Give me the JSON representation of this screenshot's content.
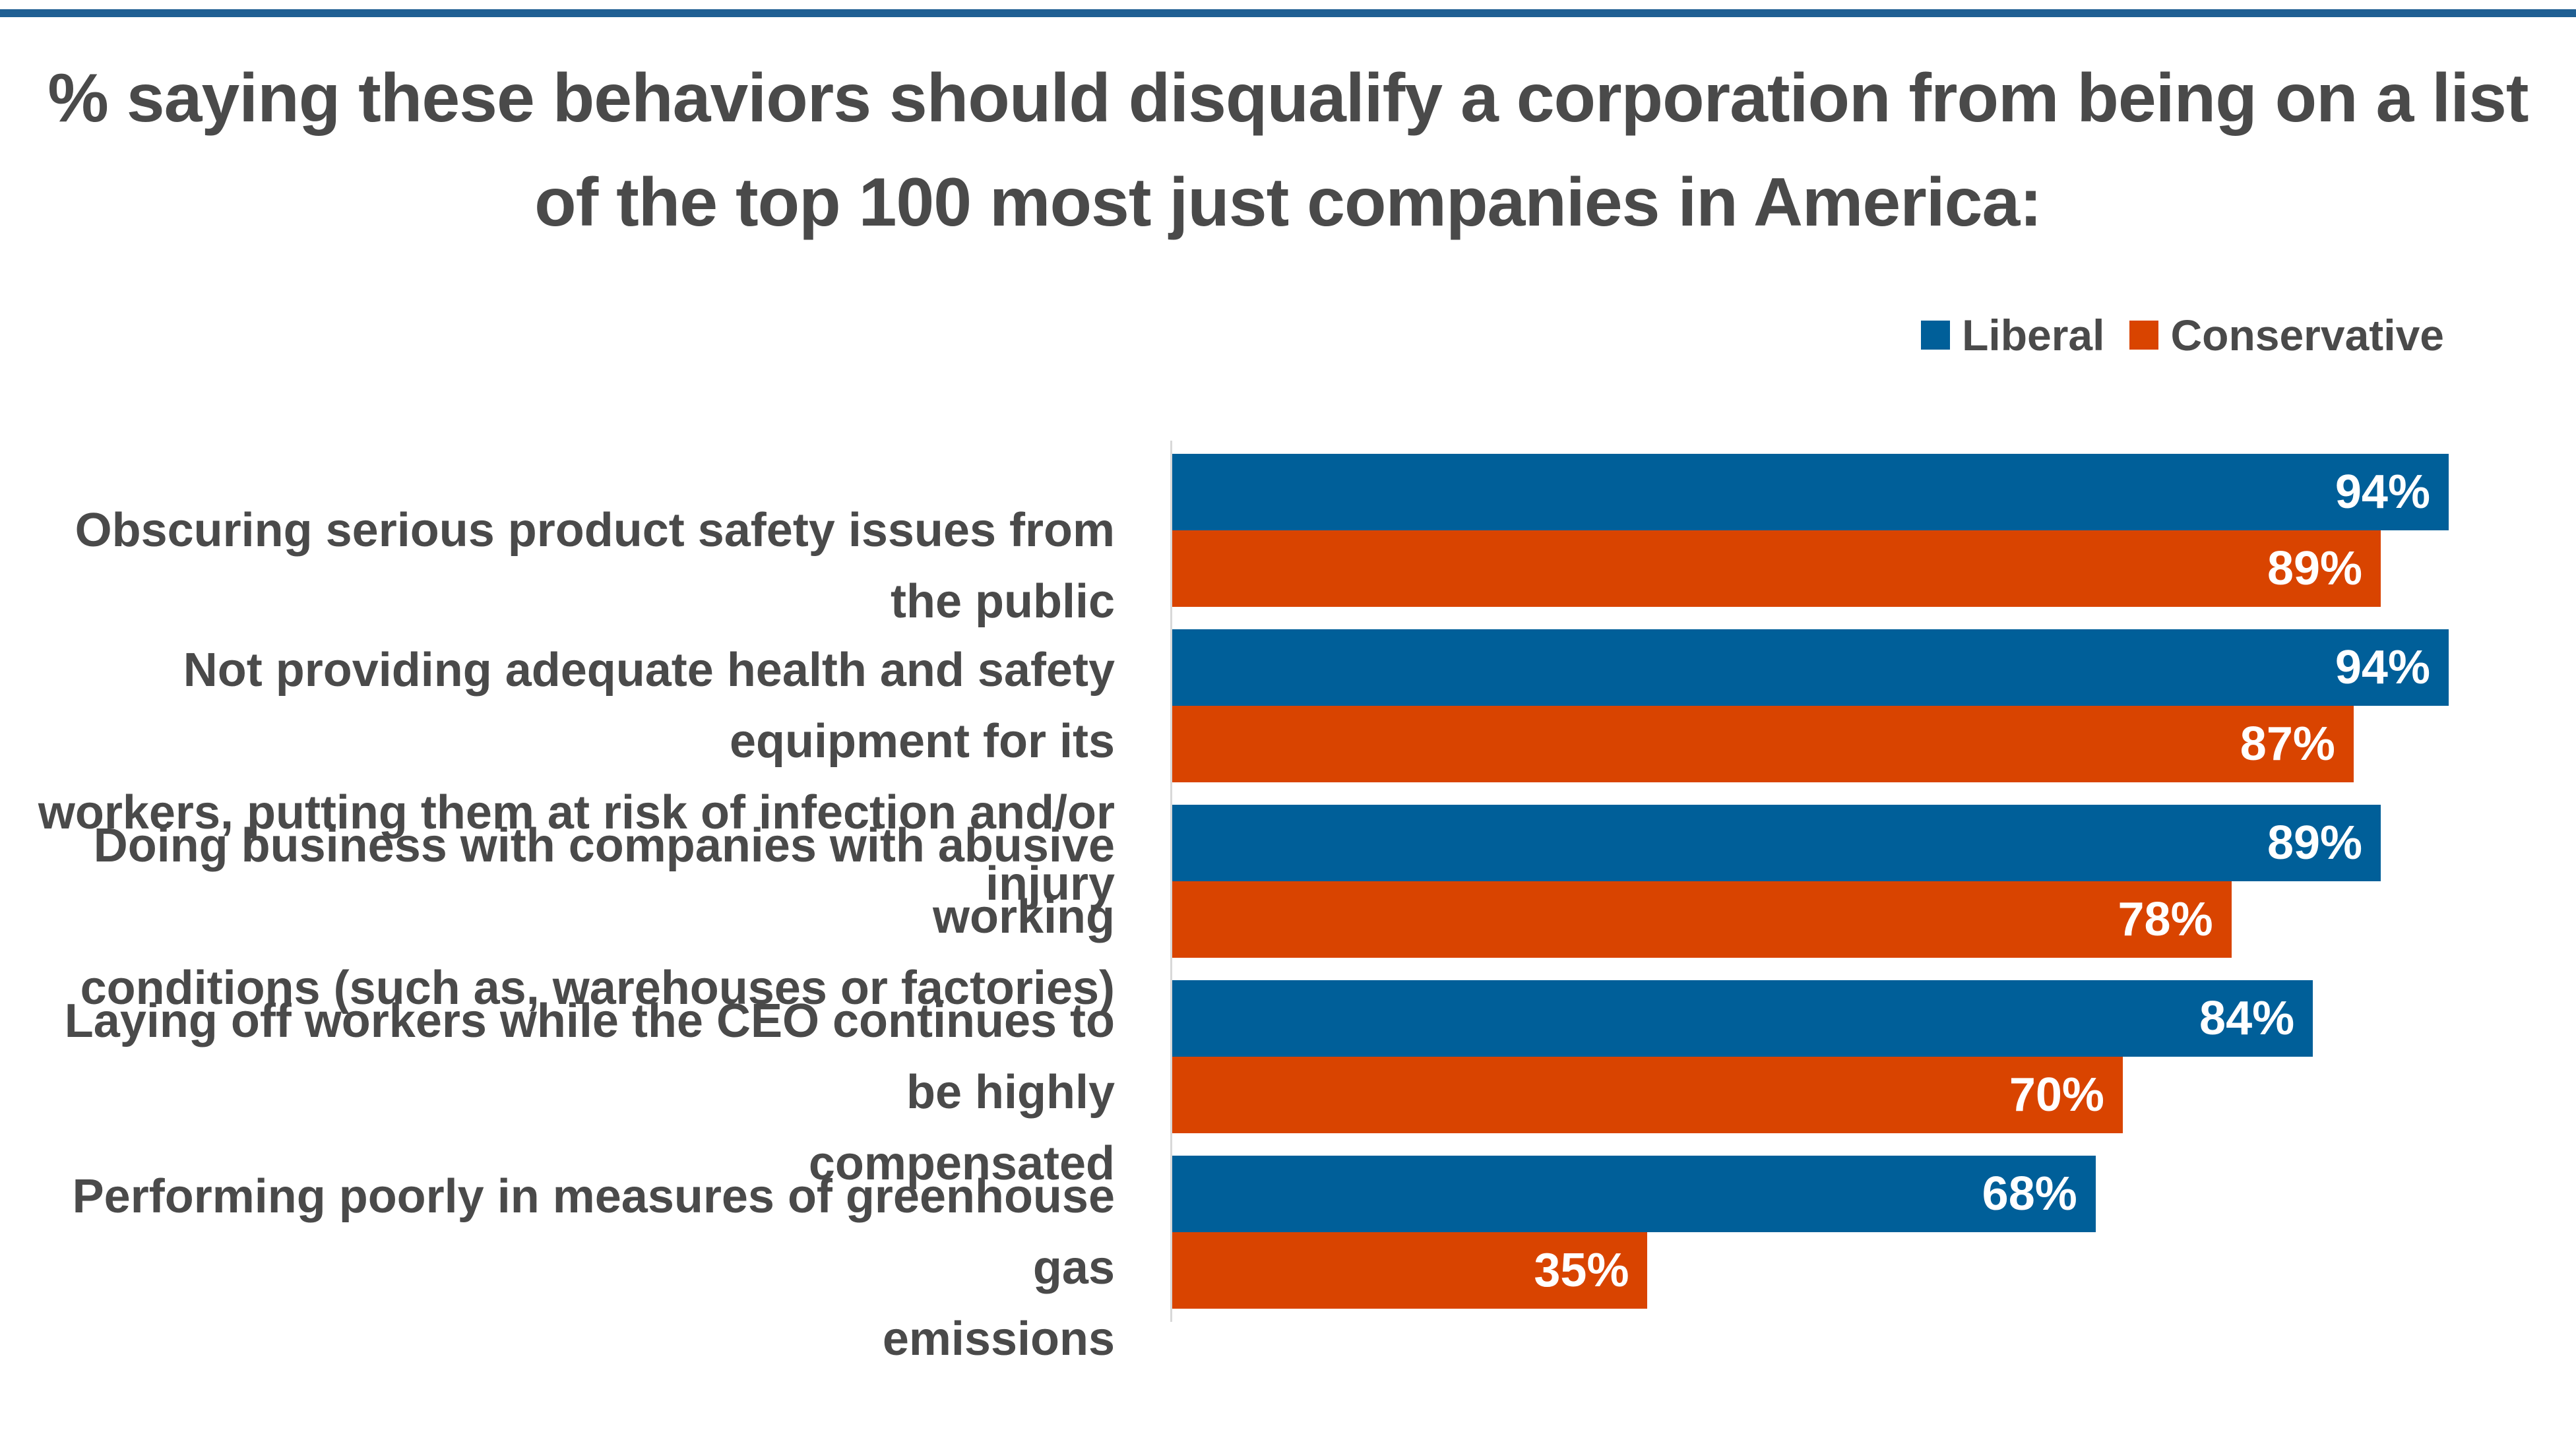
{
  "title_lines": [
    "% saying these behaviors should disqualify a corporation from being on a list",
    "of the top 100 most just companies in America:"
  ],
  "colors": {
    "liberal": "#005f99",
    "conservative": "#d94400",
    "rule": "#1f5f93"
  },
  "chart_data": {
    "type": "bar",
    "orientation": "horizontal",
    "title": "% saying these behaviors should disqualify a corporation from being on a list of the top 100 most just companies in America:",
    "categories": [
      [
        "Obscuring serious product safety issues from the public"
      ],
      [
        "Not providing adequate health and safety equipment for its",
        "workers, putting them at risk of infection and/or injury"
      ],
      [
        "Doing business with companies with abusive working",
        "conditions (such as, warehouses or factories)"
      ],
      [
        "Laying off workers while the CEO continues to be highly",
        "compensated"
      ],
      [
        "Performing poorly in measures of greenhouse gas",
        "emissions"
      ]
    ],
    "series": [
      {
        "name": "Liberal",
        "values": [
          94,
          94,
          89,
          84,
          68
        ],
        "color": "#005f99"
      },
      {
        "name": "Conservative",
        "values": [
          89,
          87,
          78,
          70,
          35
        ],
        "color": "#d94400"
      }
    ],
    "value_suffix": "%",
    "xlim": [
      0,
      100
    ],
    "grid": false,
    "legend_position": "top-right"
  }
}
